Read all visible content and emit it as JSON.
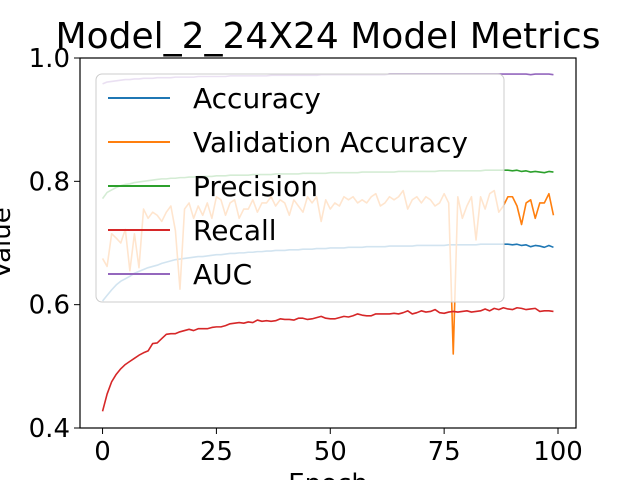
{
  "chart_data": {
    "type": "line",
    "title": "Model_2_24X24 Model Metrics",
    "xlabel": "Epoch",
    "ylabel": "Value",
    "xlim": [
      -4.95,
      103.95
    ],
    "ylim": [
      0.4,
      1.0
    ],
    "xticks": [
      0,
      25,
      50,
      75,
      100
    ],
    "yticks": [
      0.4,
      0.6,
      0.8,
      1.0
    ],
    "grid": false,
    "legend_position": "upper left",
    "x": [
      0,
      1,
      2,
      3,
      4,
      5,
      6,
      7,
      8,
      9,
      10,
      11,
      12,
      13,
      14,
      15,
      16,
      17,
      18,
      19,
      20,
      21,
      22,
      23,
      24,
      25,
      26,
      27,
      28,
      29,
      30,
      31,
      32,
      33,
      34,
      35,
      36,
      37,
      38,
      39,
      40,
      41,
      42,
      43,
      44,
      45,
      46,
      47,
      48,
      49,
      50,
      51,
      52,
      53,
      54,
      55,
      56,
      57,
      58,
      59,
      60,
      61,
      62,
      63,
      64,
      65,
      66,
      67,
      68,
      69,
      70,
      71,
      72,
      73,
      74,
      75,
      76,
      77,
      78,
      79,
      80,
      81,
      82,
      83,
      84,
      85,
      86,
      87,
      88,
      89,
      90,
      91,
      92,
      93,
      94,
      95,
      96,
      97,
      98,
      99
    ],
    "series": [
      {
        "name": "Accuracy",
        "color": "#1f77b4",
        "values": [
          0.606,
          0.615,
          0.624,
          0.632,
          0.638,
          0.642,
          0.646,
          0.651,
          0.654,
          0.657,
          0.66,
          0.662,
          0.664,
          0.667,
          0.669,
          0.671,
          0.673,
          0.674,
          0.675,
          0.676,
          0.677,
          0.678,
          0.678,
          0.679,
          0.68,
          0.681,
          0.681,
          0.682,
          0.683,
          0.683,
          0.684,
          0.684,
          0.685,
          0.685,
          0.686,
          0.686,
          0.687,
          0.687,
          0.688,
          0.688,
          0.688,
          0.689,
          0.689,
          0.689,
          0.69,
          0.69,
          0.69,
          0.691,
          0.691,
          0.691,
          0.692,
          0.692,
          0.692,
          0.692,
          0.693,
          0.693,
          0.693,
          0.693,
          0.694,
          0.694,
          0.694,
          0.694,
          0.694,
          0.695,
          0.695,
          0.695,
          0.695,
          0.695,
          0.695,
          0.696,
          0.696,
          0.696,
          0.696,
          0.696,
          0.696,
          0.696,
          0.697,
          0.697,
          0.697,
          0.697,
          0.697,
          0.697,
          0.697,
          0.698,
          0.698,
          0.698,
          0.698,
          0.698,
          0.698,
          0.698,
          0.697,
          0.698,
          0.696,
          0.697,
          0.694,
          0.696,
          0.695,
          0.693,
          0.696,
          0.693
        ]
      },
      {
        "name": "Validation Accuracy",
        "color": "#ff7f0e",
        "values": [
          0.675,
          0.662,
          0.715,
          0.708,
          0.7,
          0.722,
          0.655,
          0.715,
          0.66,
          0.755,
          0.74,
          0.75,
          0.745,
          0.735,
          0.75,
          0.76,
          0.72,
          0.625,
          0.755,
          0.765,
          0.74,
          0.76,
          0.745,
          0.765,
          0.74,
          0.775,
          0.77,
          0.745,
          0.765,
          0.77,
          0.74,
          0.755,
          0.755,
          0.77,
          0.75,
          0.765,
          0.765,
          0.775,
          0.76,
          0.77,
          0.765,
          0.745,
          0.77,
          0.76,
          0.75,
          0.775,
          0.765,
          0.775,
          0.735,
          0.77,
          0.755,
          0.765,
          0.76,
          0.775,
          0.77,
          0.775,
          0.765,
          0.77,
          0.765,
          0.775,
          0.78,
          0.76,
          0.765,
          0.775,
          0.77,
          0.775,
          0.785,
          0.755,
          0.77,
          0.775,
          0.765,
          0.775,
          0.77,
          0.76,
          0.765,
          0.78,
          0.765,
          0.52,
          0.775,
          0.74,
          0.76,
          0.775,
          0.705,
          0.775,
          0.755,
          0.78,
          0.785,
          0.75,
          0.76,
          0.775,
          0.775,
          0.76,
          0.73,
          0.765,
          0.77,
          0.74,
          0.765,
          0.765,
          0.78,
          0.745
        ]
      },
      {
        "name": "Precision",
        "color": "#2ca02c",
        "values": [
          0.772,
          0.782,
          0.786,
          0.79,
          0.793,
          0.795,
          0.796,
          0.798,
          0.799,
          0.8,
          0.801,
          0.802,
          0.803,
          0.804,
          0.804,
          0.805,
          0.805,
          0.806,
          0.806,
          0.807,
          0.807,
          0.808,
          0.808,
          0.808,
          0.808,
          0.809,
          0.809,
          0.809,
          0.81,
          0.81,
          0.81,
          0.81,
          0.81,
          0.811,
          0.811,
          0.811,
          0.811,
          0.811,
          0.812,
          0.812,
          0.812,
          0.812,
          0.812,
          0.812,
          0.813,
          0.813,
          0.813,
          0.813,
          0.813,
          0.813,
          0.814,
          0.814,
          0.814,
          0.814,
          0.814,
          0.814,
          0.814,
          0.815,
          0.815,
          0.815,
          0.815,
          0.815,
          0.815,
          0.815,
          0.815,
          0.816,
          0.816,
          0.816,
          0.816,
          0.816,
          0.816,
          0.816,
          0.816,
          0.816,
          0.817,
          0.817,
          0.817,
          0.817,
          0.817,
          0.817,
          0.817,
          0.817,
          0.817,
          0.817,
          0.818,
          0.818,
          0.818,
          0.818,
          0.818,
          0.818,
          0.817,
          0.818,
          0.816,
          0.817,
          0.815,
          0.816,
          0.815,
          0.814,
          0.816,
          0.815
        ]
      },
      {
        "name": "Recall",
        "color": "#d62728",
        "values": [
          0.427,
          0.455,
          0.475,
          0.487,
          0.496,
          0.503,
          0.508,
          0.513,
          0.518,
          0.522,
          0.525,
          0.537,
          0.538,
          0.545,
          0.552,
          0.553,
          0.553,
          0.556,
          0.558,
          0.56,
          0.558,
          0.561,
          0.561,
          0.561,
          0.563,
          0.564,
          0.564,
          0.566,
          0.569,
          0.57,
          0.571,
          0.57,
          0.572,
          0.571,
          0.575,
          0.573,
          0.574,
          0.573,
          0.574,
          0.577,
          0.576,
          0.576,
          0.575,
          0.578,
          0.578,
          0.576,
          0.577,
          0.579,
          0.581,
          0.578,
          0.577,
          0.577,
          0.579,
          0.581,
          0.58,
          0.582,
          0.585,
          0.583,
          0.582,
          0.582,
          0.585,
          0.585,
          0.585,
          0.585,
          0.586,
          0.585,
          0.587,
          0.59,
          0.585,
          0.587,
          0.59,
          0.588,
          0.589,
          0.592,
          0.587,
          0.586,
          0.588,
          0.589,
          0.588,
          0.589,
          0.59,
          0.588,
          0.589,
          0.59,
          0.593,
          0.59,
          0.594,
          0.592,
          0.595,
          0.593,
          0.592,
          0.595,
          0.594,
          0.592,
          0.593,
          0.594,
          0.589,
          0.59,
          0.59,
          0.589
        ]
      },
      {
        "name": "AUC",
        "color": "#9467bd",
        "values": [
          0.958,
          0.961,
          0.962,
          0.963,
          0.964,
          0.965,
          0.965,
          0.966,
          0.966,
          0.967,
          0.967,
          0.967,
          0.968,
          0.968,
          0.968,
          0.968,
          0.969,
          0.969,
          0.969,
          0.969,
          0.969,
          0.97,
          0.97,
          0.97,
          0.97,
          0.97,
          0.97,
          0.97,
          0.971,
          0.971,
          0.971,
          0.971,
          0.971,
          0.971,
          0.971,
          0.971,
          0.971,
          0.972,
          0.972,
          0.972,
          0.972,
          0.972,
          0.972,
          0.972,
          0.972,
          0.972,
          0.972,
          0.972,
          0.973,
          0.973,
          0.973,
          0.973,
          0.973,
          0.973,
          0.973,
          0.973,
          0.973,
          0.973,
          0.973,
          0.973,
          0.973,
          0.973,
          0.973,
          0.974,
          0.974,
          0.974,
          0.974,
          0.974,
          0.974,
          0.974,
          0.974,
          0.974,
          0.974,
          0.974,
          0.974,
          0.974,
          0.974,
          0.974,
          0.974,
          0.974,
          0.974,
          0.974,
          0.974,
          0.974,
          0.974,
          0.974,
          0.974,
          0.974,
          0.974,
          0.974,
          0.974,
          0.974,
          0.974,
          0.974,
          0.973,
          0.974,
          0.974,
          0.974,
          0.974,
          0.973
        ]
      }
    ]
  }
}
